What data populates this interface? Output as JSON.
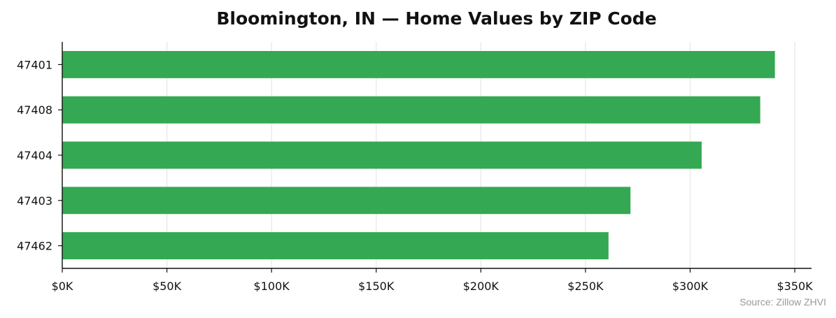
{
  "chart_data": {
    "type": "bar",
    "orientation": "horizontal",
    "title": "Bloomington, IN — Home Values by ZIP Code",
    "xlabel": "",
    "ylabel": "",
    "categories": [
      "47401",
      "47408",
      "47404",
      "47403",
      "47462"
    ],
    "values": [
      340500,
      333500,
      305500,
      271500,
      261000
    ],
    "xlim": [
      0,
      358000
    ],
    "x_ticks": [
      0,
      50000,
      100000,
      150000,
      200000,
      250000,
      300000,
      350000
    ],
    "x_tick_labels": [
      "$0K",
      "$50K",
      "$100K",
      "$150K",
      "$200K",
      "$250K",
      "$300K",
      "$350K"
    ],
    "grid": "vertical",
    "bar_color": "#35a853",
    "source": "Source: Zillow ZHVI"
  }
}
